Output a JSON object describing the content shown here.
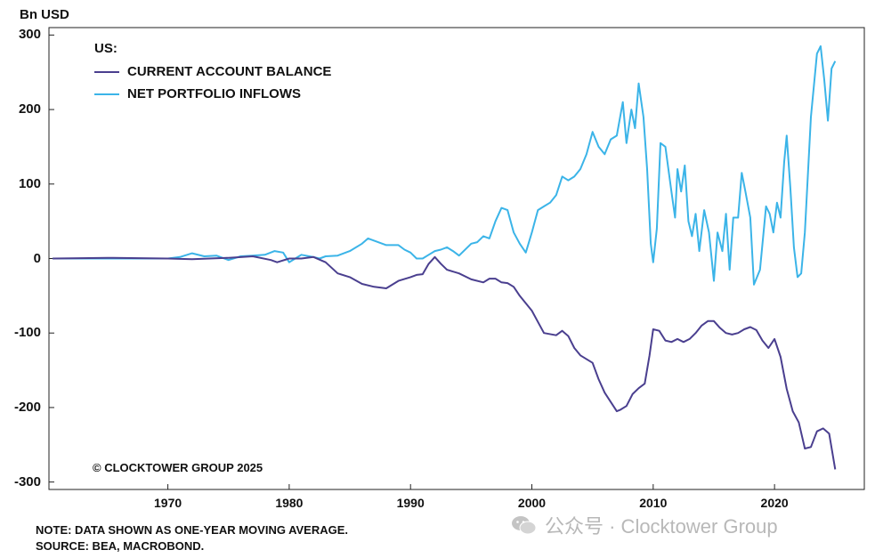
{
  "unit_label": "Bn USD",
  "legend": {
    "title": "US:",
    "items": [
      {
        "label": "CURRENT ACCOUNT BALANCE",
        "color": "#4a3f8f"
      },
      {
        "label": "NET PORTFOLIO INFLOWS",
        "color": "#3bb4e8"
      }
    ]
  },
  "copyright": "© CLOCKTOWER GROUP 2025",
  "notes": {
    "line1": "NOTE: DATA SHOWN AS ONE-YEAR MOVING AVERAGE.",
    "line2": "SOURCE: BEA, MACROBOND."
  },
  "watermark": {
    "text": "公众号 · Clocktower Group",
    "icon": "wechat-icon"
  },
  "chart_data": {
    "type": "line",
    "xlim": [
      1960.2,
      2027.4
    ],
    "ylim": [
      -310,
      310
    ],
    "x_ticks": [
      1970,
      1980,
      1990,
      2000,
      2010,
      2020
    ],
    "y_ticks": [
      300,
      200,
      100,
      0,
      -100,
      -200,
      -300
    ],
    "grid": false,
    "legend_position": "top-left",
    "series": [
      {
        "name": "CURRENT ACCOUNT BALANCE",
        "color": "#4a3f8f",
        "points": [
          [
            1960.5,
            0
          ],
          [
            1965,
            1
          ],
          [
            1970,
            0
          ],
          [
            1972,
            -1
          ],
          [
            1975,
            1
          ],
          [
            1977,
            3
          ],
          [
            1978.5,
            -2
          ],
          [
            1979,
            -5
          ],
          [
            1980,
            0
          ],
          [
            1981,
            0
          ],
          [
            1982,
            2
          ],
          [
            1983,
            -5
          ],
          [
            1984,
            -20
          ],
          [
            1985,
            -25
          ],
          [
            1986,
            -34
          ],
          [
            1987,
            -38
          ],
          [
            1988,
            -40
          ],
          [
            1989,
            -30
          ],
          [
            1990,
            -25
          ],
          [
            1990.5,
            -22
          ],
          [
            1991,
            -21
          ],
          [
            1991.5,
            -7
          ],
          [
            1992,
            2
          ],
          [
            1992.5,
            -7
          ],
          [
            1993,
            -15
          ],
          [
            1994,
            -20
          ],
          [
            1995,
            -28
          ],
          [
            1996,
            -32
          ],
          [
            1996.5,
            -27
          ],
          [
            1997,
            -27
          ],
          [
            1997.5,
            -32
          ],
          [
            1998,
            -33
          ],
          [
            1998.5,
            -38
          ],
          [
            1999,
            -50
          ],
          [
            2000,
            -70
          ],
          [
            2000.5,
            -85
          ],
          [
            2001,
            -100
          ],
          [
            2002,
            -103
          ],
          [
            2002.5,
            -97
          ],
          [
            2003,
            -104
          ],
          [
            2003.5,
            -120
          ],
          [
            2004,
            -130
          ],
          [
            2005,
            -140
          ],
          [
            2005.5,
            -162
          ],
          [
            2006,
            -180
          ],
          [
            2007,
            -205
          ],
          [
            2007.3,
            -203
          ],
          [
            2007.8,
            -198
          ],
          [
            2008.3,
            -182
          ],
          [
            2008.8,
            -174
          ],
          [
            2009.3,
            -168
          ],
          [
            2009.7,
            -130
          ],
          [
            2010,
            -95
          ],
          [
            2010.5,
            -97
          ],
          [
            2011,
            -110
          ],
          [
            2011.5,
            -112
          ],
          [
            2012,
            -108
          ],
          [
            2012.5,
            -112
          ],
          [
            2013,
            -108
          ],
          [
            2013.5,
            -100
          ],
          [
            2014,
            -90
          ],
          [
            2014.5,
            -84
          ],
          [
            2015,
            -84
          ],
          [
            2015.5,
            -93
          ],
          [
            2016,
            -100
          ],
          [
            2016.5,
            -102
          ],
          [
            2017,
            -100
          ],
          [
            2017.5,
            -95
          ],
          [
            2018,
            -92
          ],
          [
            2018.5,
            -96
          ],
          [
            2019,
            -110
          ],
          [
            2019.5,
            -120
          ],
          [
            2020,
            -108
          ],
          [
            2020.5,
            -132
          ],
          [
            2021,
            -175
          ],
          [
            2021.5,
            -205
          ],
          [
            2022,
            -220
          ],
          [
            2022.5,
            -255
          ],
          [
            2023,
            -253
          ],
          [
            2023.5,
            -232
          ],
          [
            2024,
            -228
          ],
          [
            2024.5,
            -235
          ],
          [
            2025,
            -283
          ]
        ]
      },
      {
        "name": "NET PORTFOLIO INFLOWS",
        "color": "#3bb4e8",
        "points": [
          [
            1960.5,
            0
          ],
          [
            1965,
            0
          ],
          [
            1970,
            0
          ],
          [
            1971,
            2
          ],
          [
            1972,
            7
          ],
          [
            1973,
            3
          ],
          [
            1974,
            4
          ],
          [
            1975,
            -2
          ],
          [
            1976,
            3
          ],
          [
            1977,
            4
          ],
          [
            1978,
            5
          ],
          [
            1978.8,
            10
          ],
          [
            1979.5,
            8
          ],
          [
            1980,
            -5
          ],
          [
            1980.5,
            0
          ],
          [
            1981,
            5
          ],
          [
            1982,
            2
          ],
          [
            1982.5,
            0
          ],
          [
            1983,
            3
          ],
          [
            1984,
            4
          ],
          [
            1985,
            10
          ],
          [
            1986,
            20
          ],
          [
            1986.5,
            27
          ],
          [
            1987,
            24
          ],
          [
            1988,
            18
          ],
          [
            1989,
            18
          ],
          [
            1989.5,
            12
          ],
          [
            1990,
            8
          ],
          [
            1990.5,
            0
          ],
          [
            1991,
            0
          ],
          [
            1991.5,
            5
          ],
          [
            1992,
            10
          ],
          [
            1992.5,
            12
          ],
          [
            1993,
            15
          ],
          [
            1993.5,
            10
          ],
          [
            1994,
            4
          ],
          [
            1995,
            20
          ],
          [
            1995.5,
            22
          ],
          [
            1996,
            30
          ],
          [
            1996.5,
            27
          ],
          [
            1997,
            50
          ],
          [
            1997.5,
            68
          ],
          [
            1998,
            65
          ],
          [
            1998.5,
            35
          ],
          [
            1999,
            20
          ],
          [
            1999.5,
            8
          ],
          [
            2000,
            35
          ],
          [
            2000.5,
            65
          ],
          [
            2001,
            70
          ],
          [
            2001.5,
            75
          ],
          [
            2002,
            85
          ],
          [
            2002.5,
            110
          ],
          [
            2003,
            105
          ],
          [
            2003.5,
            110
          ],
          [
            2004,
            120
          ],
          [
            2004.5,
            140
          ],
          [
            2005,
            170
          ],
          [
            2005.5,
            150
          ],
          [
            2006,
            140
          ],
          [
            2006.5,
            160
          ],
          [
            2007,
            165
          ],
          [
            2007.5,
            210
          ],
          [
            2007.8,
            155
          ],
          [
            2008.2,
            200
          ],
          [
            2008.5,
            175
          ],
          [
            2008.8,
            235
          ],
          [
            2009.2,
            190
          ],
          [
            2009.5,
            120
          ],
          [
            2009.8,
            20
          ],
          [
            2010,
            -5
          ],
          [
            2010.3,
            40
          ],
          [
            2010.6,
            155
          ],
          [
            2011,
            150
          ],
          [
            2011.5,
            90
          ],
          [
            2011.8,
            55
          ],
          [
            2012,
            120
          ],
          [
            2012.3,
            90
          ],
          [
            2012.6,
            125
          ],
          [
            2012.9,
            50
          ],
          [
            2013.2,
            30
          ],
          [
            2013.5,
            60
          ],
          [
            2013.8,
            10
          ],
          [
            2014.2,
            65
          ],
          [
            2014.6,
            35
          ],
          [
            2015,
            -30
          ],
          [
            2015.3,
            35
          ],
          [
            2015.7,
            10
          ],
          [
            2016,
            60
          ],
          [
            2016.3,
            -15
          ],
          [
            2016.6,
            55
          ],
          [
            2017,
            55
          ],
          [
            2017.3,
            115
          ],
          [
            2017.6,
            90
          ],
          [
            2018,
            55
          ],
          [
            2018.3,
            -35
          ],
          [
            2018.8,
            -15
          ],
          [
            2019.3,
            70
          ],
          [
            2019.6,
            60
          ],
          [
            2019.9,
            35
          ],
          [
            2020.2,
            75
          ],
          [
            2020.5,
            55
          ],
          [
            2020.8,
            130
          ],
          [
            2021,
            165
          ],
          [
            2021.3,
            95
          ],
          [
            2021.6,
            15
          ],
          [
            2021.9,
            -25
          ],
          [
            2022.2,
            -20
          ],
          [
            2022.5,
            35
          ],
          [
            2023,
            190
          ],
          [
            2023.5,
            275
          ],
          [
            2023.8,
            285
          ],
          [
            2024.1,
            240
          ],
          [
            2024.4,
            185
          ],
          [
            2024.7,
            255
          ],
          [
            2025,
            265
          ]
        ]
      }
    ]
  }
}
